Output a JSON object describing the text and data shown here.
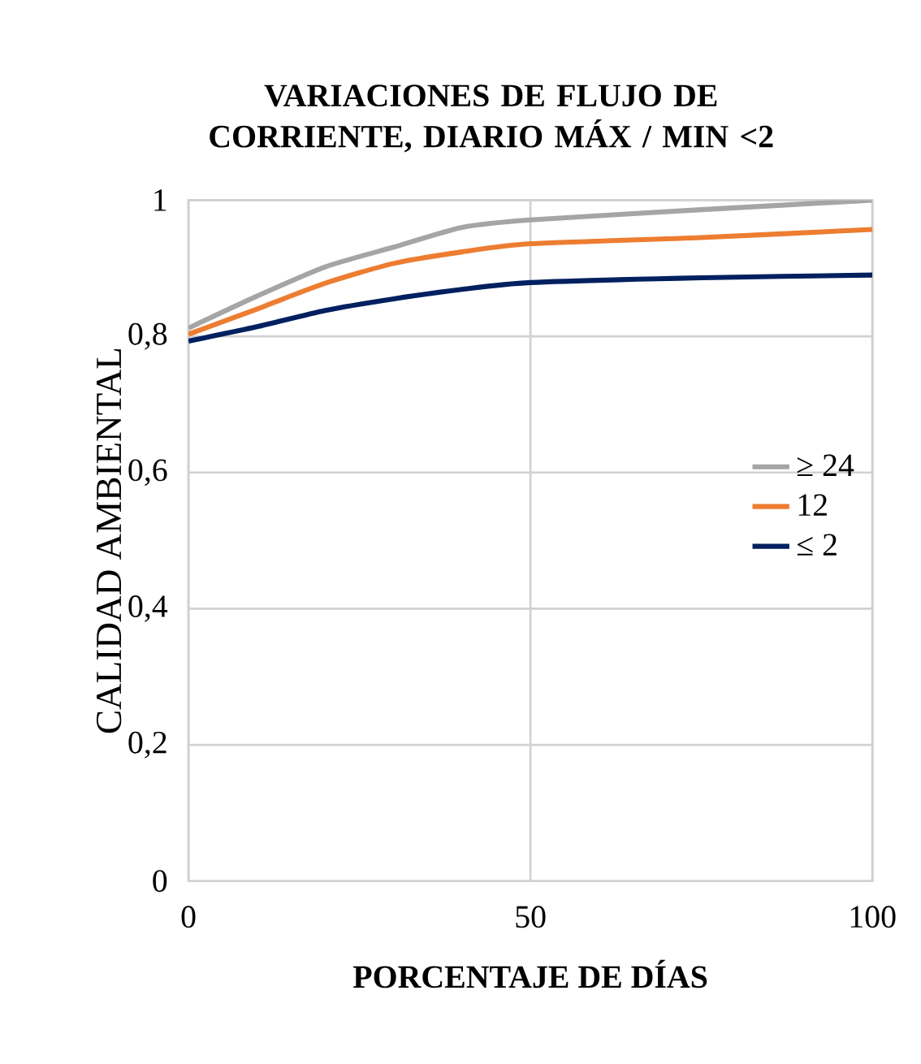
{
  "chart_data": {
    "type": "line",
    "title": "VARIACIONES DE FLUJO DE CORRIENTE, DIARIO MÁX / MIN <2",
    "xlabel": "PORCENTAJE  DE DÍAS",
    "ylabel": "CALIDAD AMBIENTAL",
    "xlim": [
      0,
      100
    ],
    "ylim": [
      0,
      1
    ],
    "xticks": [
      0,
      50,
      100
    ],
    "yticks": [
      0,
      {
        "value": 0.2,
        "label": "0,2"
      },
      {
        "value": 0.4,
        "label": "0,4"
      },
      {
        "value": 0.6,
        "label": "0,6"
      },
      {
        "value": 0.8,
        "label": "0,8"
      },
      1
    ],
    "grid": true,
    "legend": "right",
    "marker": "none",
    "line_style": "solid",
    "series": [
      {
        "name": "≥ 24",
        "color": "#a5a5a5",
        "x": [
          0,
          10,
          20,
          30,
          40,
          50,
          75,
          100
        ],
        "values": [
          0.812,
          0.859,
          0.902,
          0.931,
          0.96,
          0.971,
          0.986,
          1.0
        ]
      },
      {
        "name": "12",
        "color": "#ed7d31",
        "x": [
          0,
          10,
          20,
          30,
          40,
          50,
          75,
          100
        ],
        "values": [
          0.803,
          0.84,
          0.878,
          0.907,
          0.924,
          0.936,
          0.945,
          0.957
        ]
      },
      {
        "name": "≤ 2",
        "color": "#002060",
        "x": [
          0,
          10,
          20,
          30,
          40,
          50,
          75,
          100
        ],
        "values": [
          0.793,
          0.814,
          0.838,
          0.855,
          0.869,
          0.879,
          0.886,
          0.89
        ]
      }
    ]
  }
}
